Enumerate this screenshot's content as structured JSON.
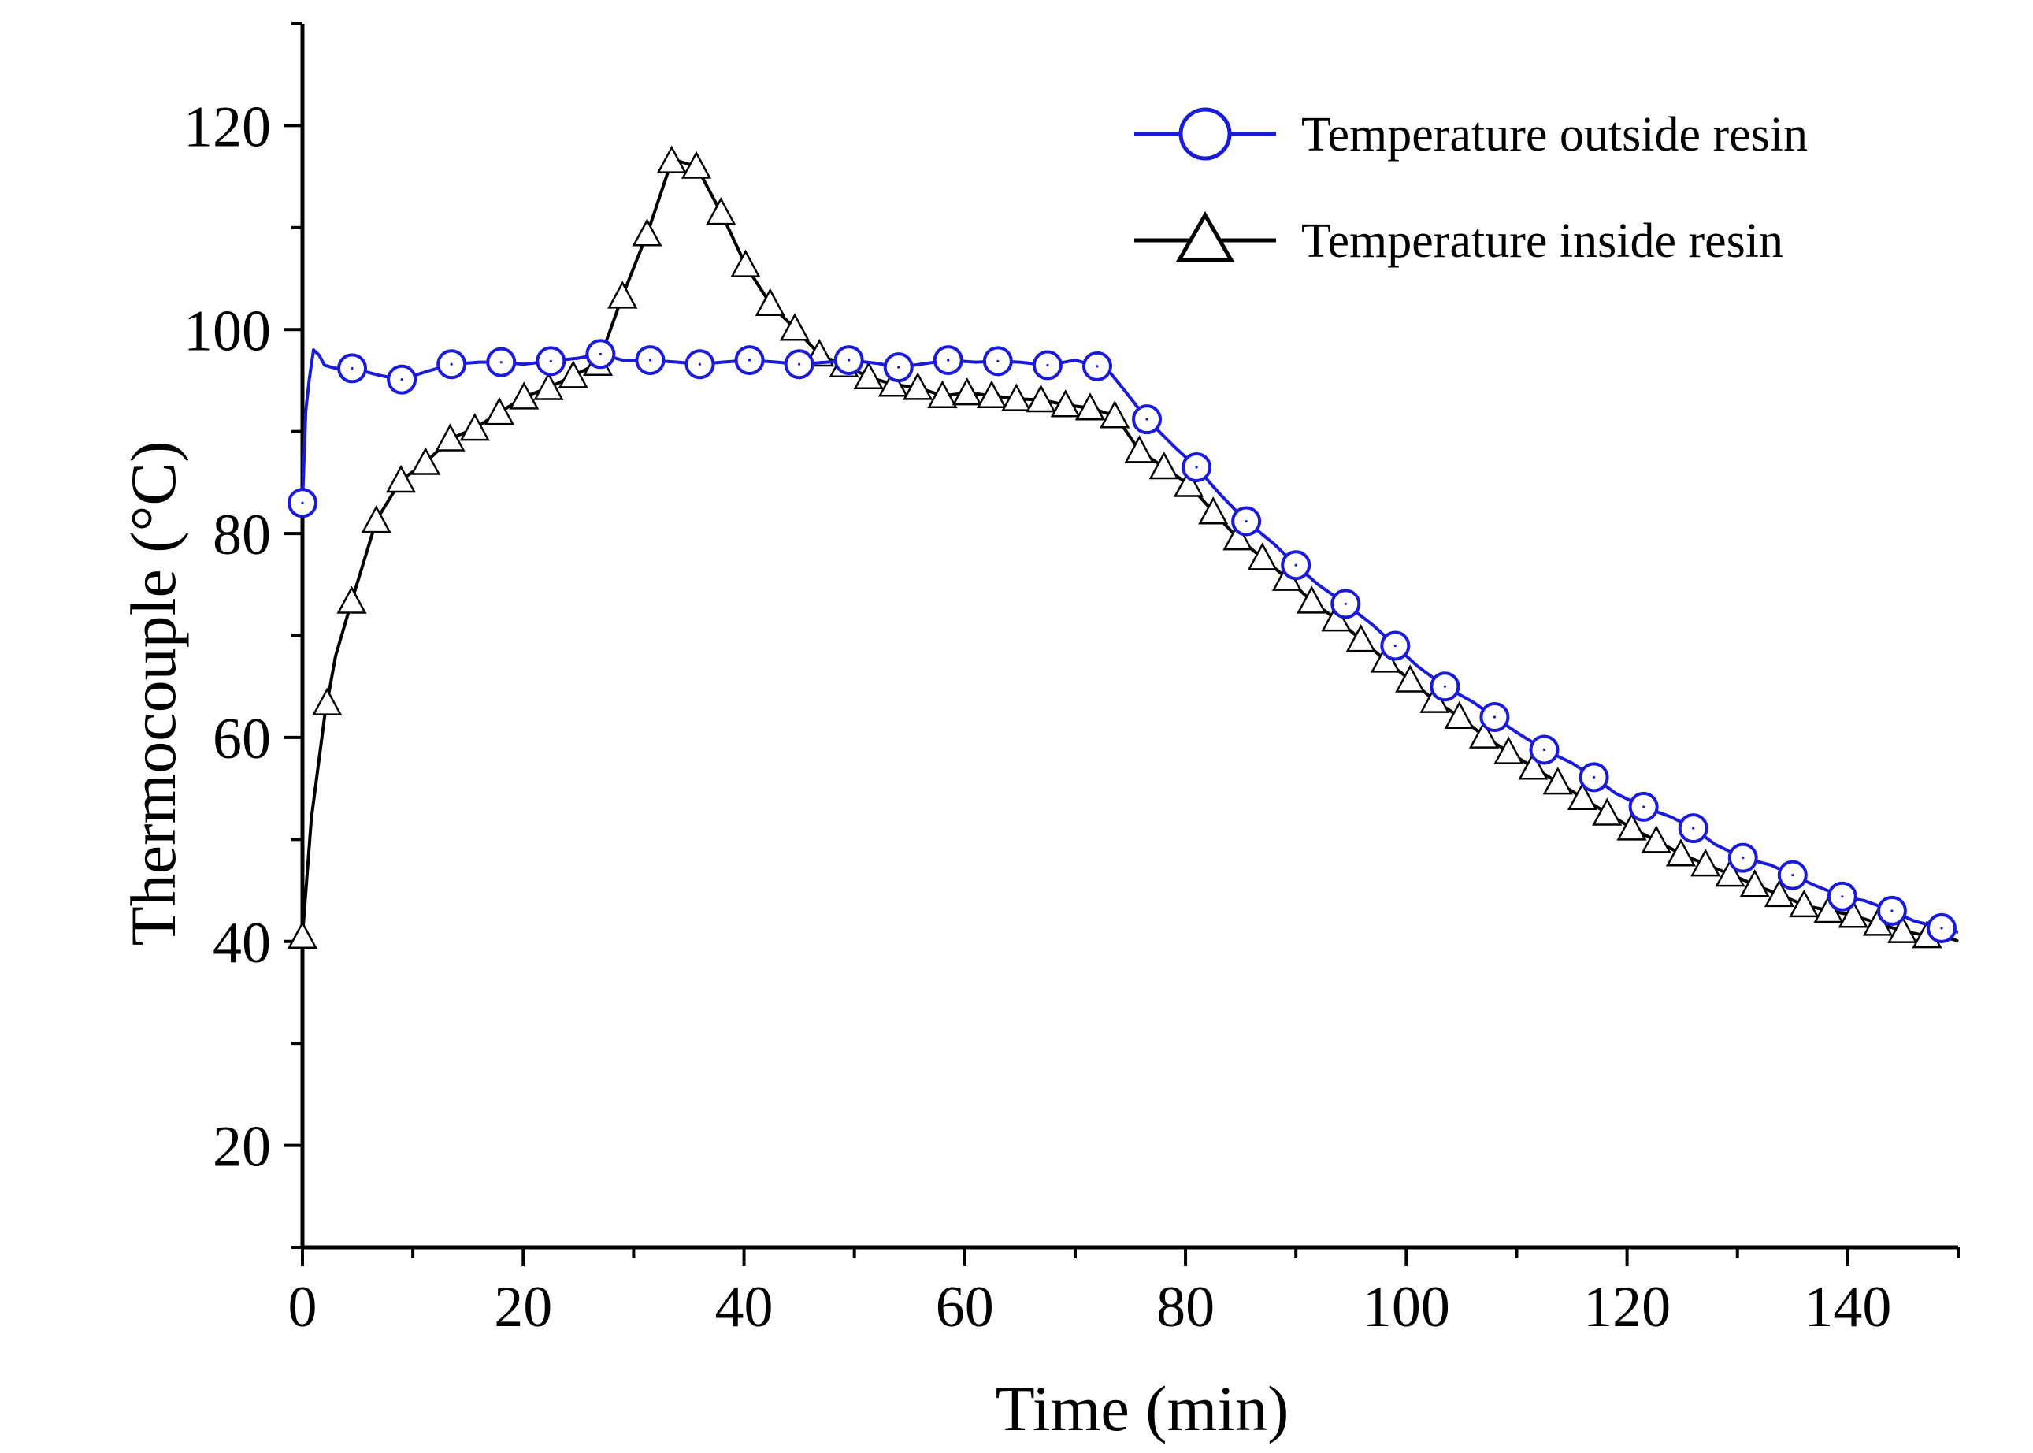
{
  "chart_data": {
    "type": "line",
    "title": "",
    "xlabel": "Time (min)",
    "ylabel": "Thermocouple (°C)",
    "xlim": [
      0,
      150
    ],
    "ylim": [
      10,
      130
    ],
    "xticks": [
      0,
      20,
      40,
      60,
      80,
      100,
      120,
      140
    ],
    "xtick_labels": [
      "0",
      "20",
      "40",
      "60",
      "80",
      "100",
      "120",
      "140"
    ],
    "yticks": [
      20,
      40,
      60,
      80,
      100,
      120
    ],
    "ytick_labels": [
      "20",
      "40",
      "60",
      "80",
      "100",
      "120"
    ],
    "grid": false,
    "legend_position": "top-right",
    "series": [
      {
        "name": "Temperature outside resin",
        "color": "#1a1adb",
        "marker": "circle",
        "x": [
          0,
          0.3,
          0.6,
          1,
          1.5,
          2,
          3,
          4.5,
          7,
          9,
          11,
          13.5,
          16,
          18,
          20,
          22.5,
          25,
          27,
          29,
          31.5,
          34,
          36,
          38,
          40.5,
          43,
          45,
          47.5,
          49.5,
          52,
          54,
          56,
          58.5,
          61,
          63,
          65,
          67.5,
          70,
          72,
          73,
          74.5,
          76.5,
          79,
          81,
          83,
          85.5,
          88,
          90,
          92,
          94.5,
          97,
          99,
          101,
          103.5,
          106,
          108,
          110,
          112.5,
          115,
          117,
          119,
          121.5,
          124,
          126,
          128,
          130.5,
          133,
          135,
          137,
          139.5,
          141.5,
          144,
          146,
          148.5,
          150
        ],
        "y": [
          83,
          92,
          95,
          98,
          97.5,
          96.5,
          96.2,
          96.2,
          95.5,
          95.1,
          95.8,
          96.6,
          96.8,
          96.8,
          96.6,
          96.9,
          97.2,
          97.6,
          97.0,
          97.0,
          96.8,
          96.6,
          96.8,
          97.0,
          96.8,
          96.6,
          96.8,
          97.0,
          96.7,
          96.3,
          96.6,
          97.0,
          96.8,
          96.9,
          96.8,
          96.5,
          97.0,
          96.4,
          96.0,
          94.0,
          91.2,
          88.5,
          86.5,
          84.0,
          81.2,
          79.0,
          76.9,
          75.0,
          73.1,
          71.0,
          69.0,
          67.0,
          65.0,
          63.5,
          62.0,
          60.5,
          58.8,
          57.5,
          56.1,
          54.5,
          53.2,
          52.2,
          51.1,
          49.5,
          48.2,
          47.5,
          46.5,
          45.5,
          44.4,
          44.0,
          43.0,
          42.0,
          41.3,
          40.9
        ]
      },
      {
        "name": "Temperature inside resin",
        "color": "#000000",
        "marker": "triangle",
        "x": [
          0,
          0.8,
          2,
          3,
          4.5,
          6.7,
          8.9,
          11.2,
          13.4,
          15.6,
          17.9,
          20.1,
          22.3,
          24.6,
          26.8,
          29.0,
          31.3,
          33.5,
          35.7,
          38.0,
          40.2,
          42.4,
          44.7,
          46.9,
          49.1,
          51.4,
          53.6,
          55.8,
          58.0,
          60.3,
          62.5,
          64.7,
          67.0,
          69.2,
          71.4,
          73.7,
          75.9,
          78.1,
          80.4,
          82.6,
          84.8,
          87.1,
          89.3,
          91.5,
          93.8,
          96.0,
          98.2,
          100.5,
          102.7,
          104.9,
          107.2,
          109.4,
          111.6,
          113.9,
          116.1,
          118.3,
          120.6,
          122.8,
          125.0,
          127.3,
          129.5,
          131.7,
          134.0,
          136.2,
          138.4,
          140.7,
          142.9,
          145.1,
          147.4,
          149.6,
          150
        ],
        "y": [
          40.5,
          52,
          62,
          68,
          73.5,
          81.3,
          85.2,
          87.0,
          89.3,
          90.3,
          91.9,
          93.4,
          94.3,
          95.5,
          96.7,
          103.3,
          109.6,
          116.7,
          116.0,
          111.3,
          106.2,
          102.5,
          100.0,
          97.5,
          96.5,
          95.3,
          94.6,
          94.3,
          93.5,
          93.8,
          93.5,
          93.2,
          93.1,
          92.6,
          92.3,
          91.5,
          88.0,
          86.5,
          84.7,
          82.0,
          79.5,
          77.5,
          75.5,
          73.3,
          71.5,
          69.5,
          67.5,
          65.5,
          63.5,
          62.0,
          60.0,
          58.5,
          57.0,
          55.5,
          54.0,
          52.5,
          51.0,
          49.8,
          48.5,
          47.5,
          46.5,
          45.5,
          44.5,
          43.5,
          43.0,
          42.5,
          41.7,
          41.0,
          40.5,
          40.2,
          40.0
        ]
      }
    ]
  }
}
